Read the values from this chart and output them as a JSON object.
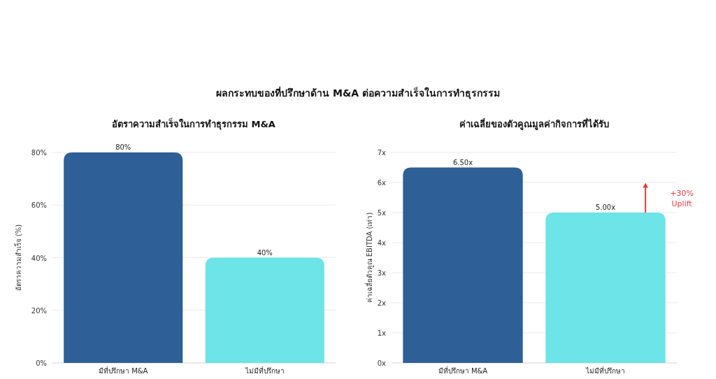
{
  "chart_data": [
    {
      "type": "other",
      "title": "ผลกระทบของที่ปรึกษาด้าน M&A ต่อความสำเร็จในการทำธุรกรรม"
    },
    {
      "type": "bar",
      "title": "อัตราความสำเร็จในการทำธุรกรรม M&A",
      "ylabel": "อัตราความสำเร็จ (%)",
      "categories": [
        "มีที่ปรึกษา M&A",
        "ไม่มีที่ปรึกษา"
      ],
      "values": [
        80,
        40
      ],
      "colors": [
        "#2e5f96",
        "#6ce4e8"
      ],
      "value_labels": [
        "80%",
        "40%"
      ],
      "ylim": [
        0,
        80
      ],
      "yticks": [
        {
          "value": 0,
          "label": "0%"
        },
        {
          "value": 20,
          "label": "20%"
        },
        {
          "value": 40,
          "label": "40%"
        },
        {
          "value": 60,
          "label": "60%"
        },
        {
          "value": 80,
          "label": "80%"
        }
      ],
      "grid": "y"
    },
    {
      "type": "bar",
      "title": "ค่าเฉลี่ยของตัวคูณมูลค่ากิจการที่ได้รับ",
      "ylabel": "ค่าเฉลี่ยตัวคูณ EBITDA (เท่า)",
      "categories": [
        "มีที่ปรึกษา M&A",
        "ไม่มีที่ปรึกษา"
      ],
      "values": [
        6.5,
        5.0
      ],
      "colors": [
        "#2e5f96",
        "#6ce4e8"
      ],
      "value_labels": [
        "6.50x",
        "5.00x"
      ],
      "ylim": [
        0,
        7
      ],
      "yticks": [
        {
          "value": 0,
          "label": "0x"
        },
        {
          "value": 1,
          "label": "1x"
        },
        {
          "value": 2,
          "label": "2x"
        },
        {
          "value": 3,
          "label": "3x"
        },
        {
          "value": 4,
          "label": "4x"
        },
        {
          "value": 5,
          "label": "5x"
        },
        {
          "value": 6,
          "label": "6x"
        },
        {
          "value": 7,
          "label": "7x"
        }
      ],
      "grid": "y",
      "annotations": [
        "+30% Uplift"
      ]
    }
  ]
}
